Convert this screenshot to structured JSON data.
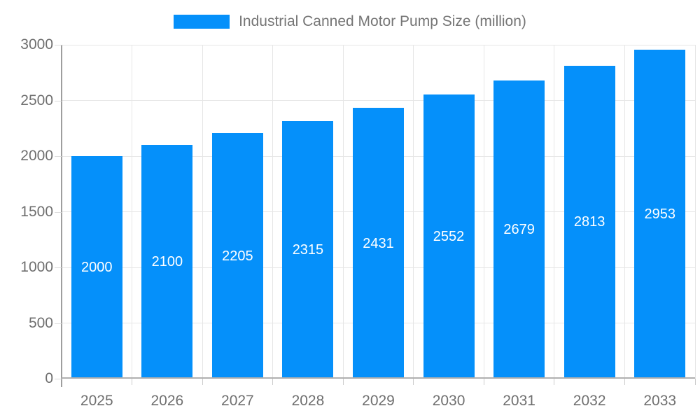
{
  "legend": {
    "label": "Industrial Canned Motor Pump Size (million)"
  },
  "colors": {
    "bar": "#0590fa",
    "text": "#757575",
    "gridline": "#e6e6e6",
    "axis_y": "#9e9e9e",
    "axis_x": "#b0b0b0",
    "bar_label": "#ffffff"
  },
  "chart_data": {
    "type": "bar",
    "title": "Industrial Canned Motor Pump Size (million)",
    "categories": [
      "2025",
      "2026",
      "2027",
      "2028",
      "2029",
      "2030",
      "2031",
      "2032",
      "2033"
    ],
    "values": [
      2000,
      2100,
      2205,
      2315,
      2431,
      2552,
      2679,
      2813,
      2953
    ],
    "series_name": "Industrial Canned Motor Pump Size (million)",
    "xlabel": "",
    "ylabel": "",
    "ylim": [
      0,
      3000
    ],
    "yticks": [
      0,
      500,
      1000,
      1500,
      2000,
      2500,
      3000
    ],
    "grid": "on",
    "legend_position": "top-center",
    "bar_labels_inside": true
  }
}
